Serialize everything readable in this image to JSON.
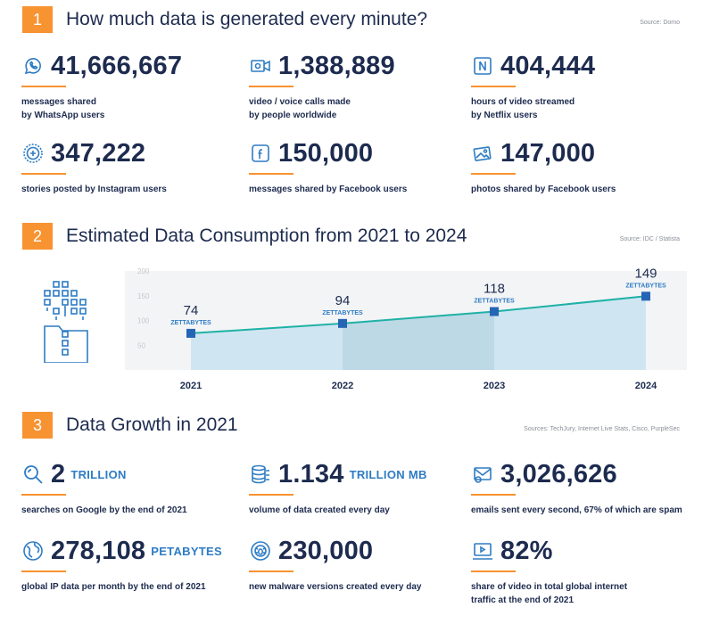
{
  "section1": {
    "number": "1",
    "title": "How much data is generated every minute?",
    "source": "Source: Domo",
    "stats": [
      {
        "icon": "whatsapp-icon",
        "value": "41,666,667",
        "desc1": "messages shared",
        "desc2": "by WhatsApp users"
      },
      {
        "icon": "video-call-icon",
        "value": "1,388,889",
        "desc1": "video / voice calls made",
        "desc2": "by people worldwide"
      },
      {
        "icon": "netflix-icon",
        "value": "404,444",
        "desc1": "hours of video streamed",
        "desc2": "by Netflix users"
      },
      {
        "icon": "instagram-icon",
        "value": "347,222",
        "desc1": "stories posted by Instagram users",
        "desc2": ""
      },
      {
        "icon": "facebook-icon",
        "value": "150,000",
        "desc1": "messages shared by Facebook users",
        "desc2": ""
      },
      {
        "icon": "photo-icon",
        "value": "147,000",
        "desc1": "photos shared by Facebook users",
        "desc2": ""
      }
    ]
  },
  "section2": {
    "number": "2",
    "title": "Estimated Data Consumption from 2021 to 2024",
    "source": "Source: IDC / Statista"
  },
  "section3": {
    "number": "3",
    "title": "Data Growth in 2021",
    "source": "Sources: TechJury, Internet Live Stats, Cisco, PurpleSec",
    "stats": [
      {
        "icon": "search-icon",
        "value": "2",
        "unit": "TRILLION",
        "desc1": "searches on Google by the end of 2021",
        "desc2": ""
      },
      {
        "icon": "database-icon",
        "value": "1.134",
        "unit": "TRILLION MB",
        "desc1": "volume of data created every day",
        "desc2": ""
      },
      {
        "icon": "email-icon",
        "value": "3,026,626",
        "unit": "",
        "desc1": "emails sent every second, 67% of which are spam",
        "desc2": ""
      },
      {
        "icon": "globe-icon",
        "value": "278,108",
        "unit": "PETABYTES",
        "desc1": "global IP data per month by the end of 2021",
        "desc2": ""
      },
      {
        "icon": "malware-icon",
        "value": "230,000",
        "unit": "",
        "desc1": "new malware versions created every day",
        "desc2": ""
      },
      {
        "icon": "video-screen-icon",
        "value": "82%",
        "unit": "",
        "desc1": "share of video in total global internet",
        "desc2": "traffic at the end of 2021"
      }
    ]
  },
  "chart_data": {
    "type": "area",
    "categories": [
      "2021",
      "2022",
      "2023",
      "2024"
    ],
    "values": [
      74,
      94,
      118,
      149
    ],
    "value_unit": "ZETTABYTES",
    "ylim": [
      0,
      200
    ],
    "yticks": [
      "200",
      "150",
      "100",
      "50"
    ],
    "grid": false,
    "colors": {
      "line": "#1fb1a6",
      "marker": "#2565b5",
      "fill": "#cfe6f2",
      "fill_alt": "#bcd9e5",
      "label": "#2e7cc4",
      "tick": "#c4c8ce"
    }
  }
}
